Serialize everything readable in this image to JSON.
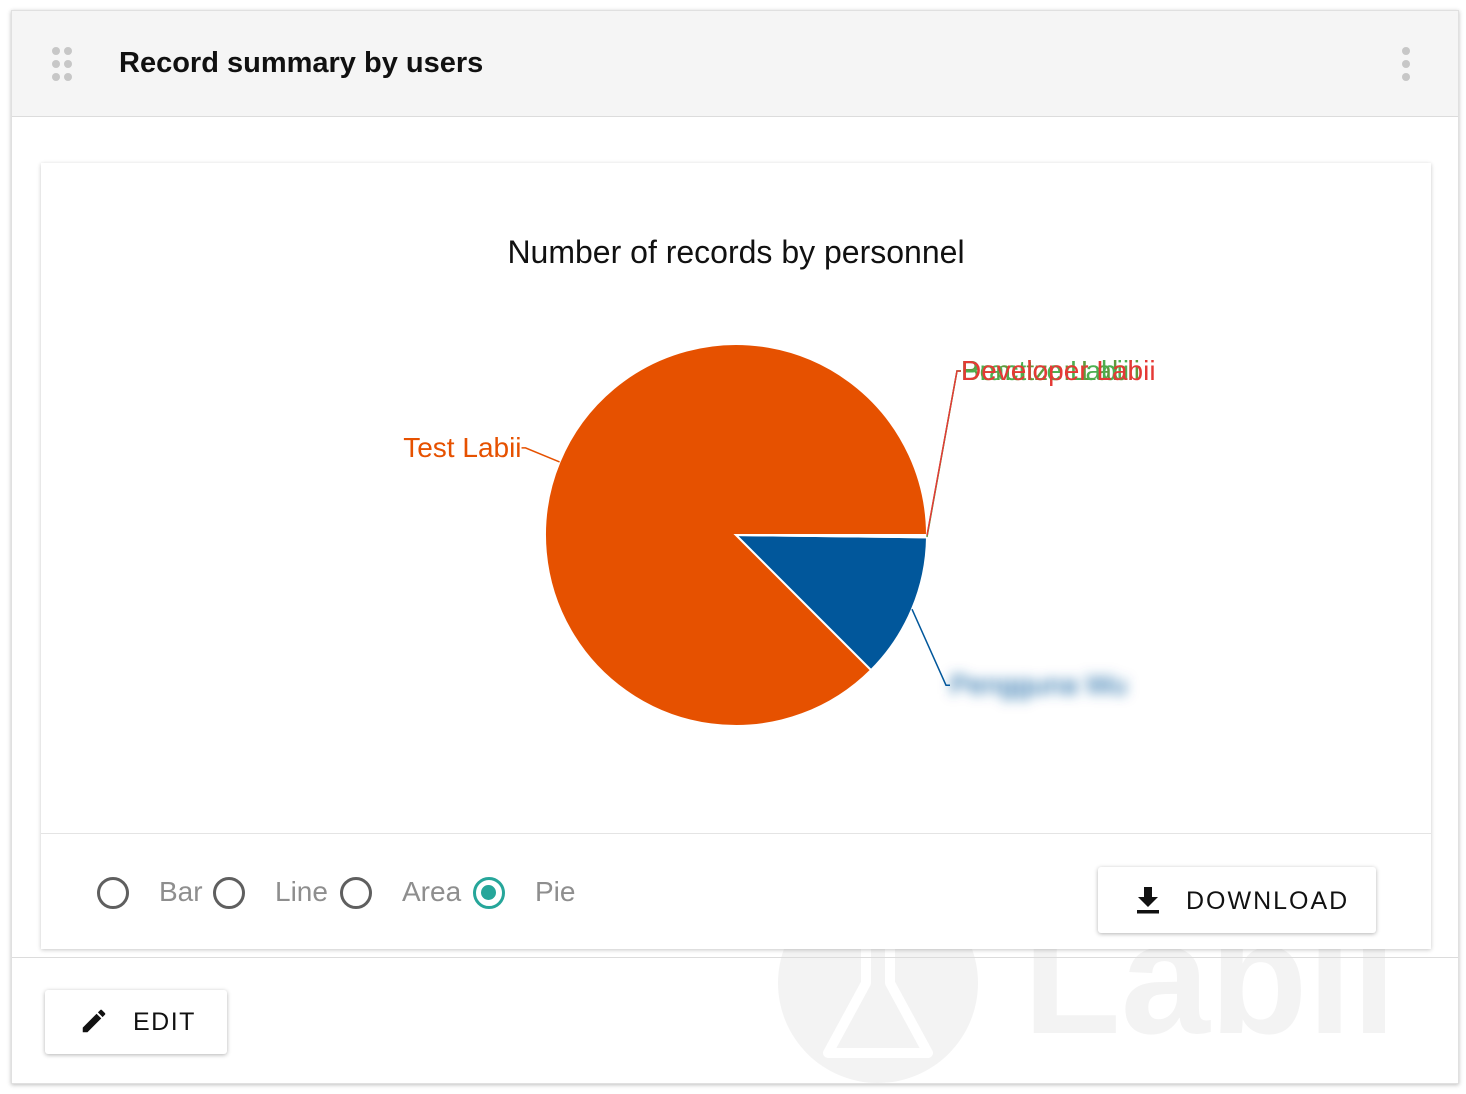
{
  "widget": {
    "title": "Record summary by users",
    "drag_icon": "drag-handle-icon",
    "menu_icon": "more-vert-icon"
  },
  "chart_data": {
    "type": "pie",
    "title": "Number of records by personnel",
    "slices": [
      {
        "label": "Test Labii",
        "value": 87.5,
        "color": "#e65100",
        "label_color": "#e65100",
        "blurred": false
      },
      {
        "label": "Pengguna Wu",
        "value": 12.3,
        "color": "#01579b",
        "label_color": "#01579b",
        "blurred": true
      },
      {
        "label": "Benutzer Labii",
        "value": 0.07,
        "color": "#5f9a3c",
        "label_color": "#5f9a3c",
        "blurred": false
      },
      {
        "label": "Practice Labii",
        "value": 0.07,
        "color": "#4caf50",
        "label_color": "#4caf50",
        "blurred": false
      },
      {
        "label": "Developer Labii",
        "value": 0.06,
        "color": "#e53935",
        "label_color": "#e53935",
        "blurred": false
      }
    ]
  },
  "chart_types": {
    "options": [
      "Bar",
      "Line",
      "Area",
      "Pie"
    ],
    "selected": "Pie"
  },
  "download": {
    "label": "DOWNLOAD",
    "icon": "download-icon"
  },
  "edit": {
    "label": "EDIT",
    "icon": "pencil-icon"
  },
  "watermark": {
    "text": "Labii",
    "icon": "flask-logo-icon"
  },
  "colors": {
    "accent": "#26a69a",
    "header_bg": "#f5f5f5"
  }
}
